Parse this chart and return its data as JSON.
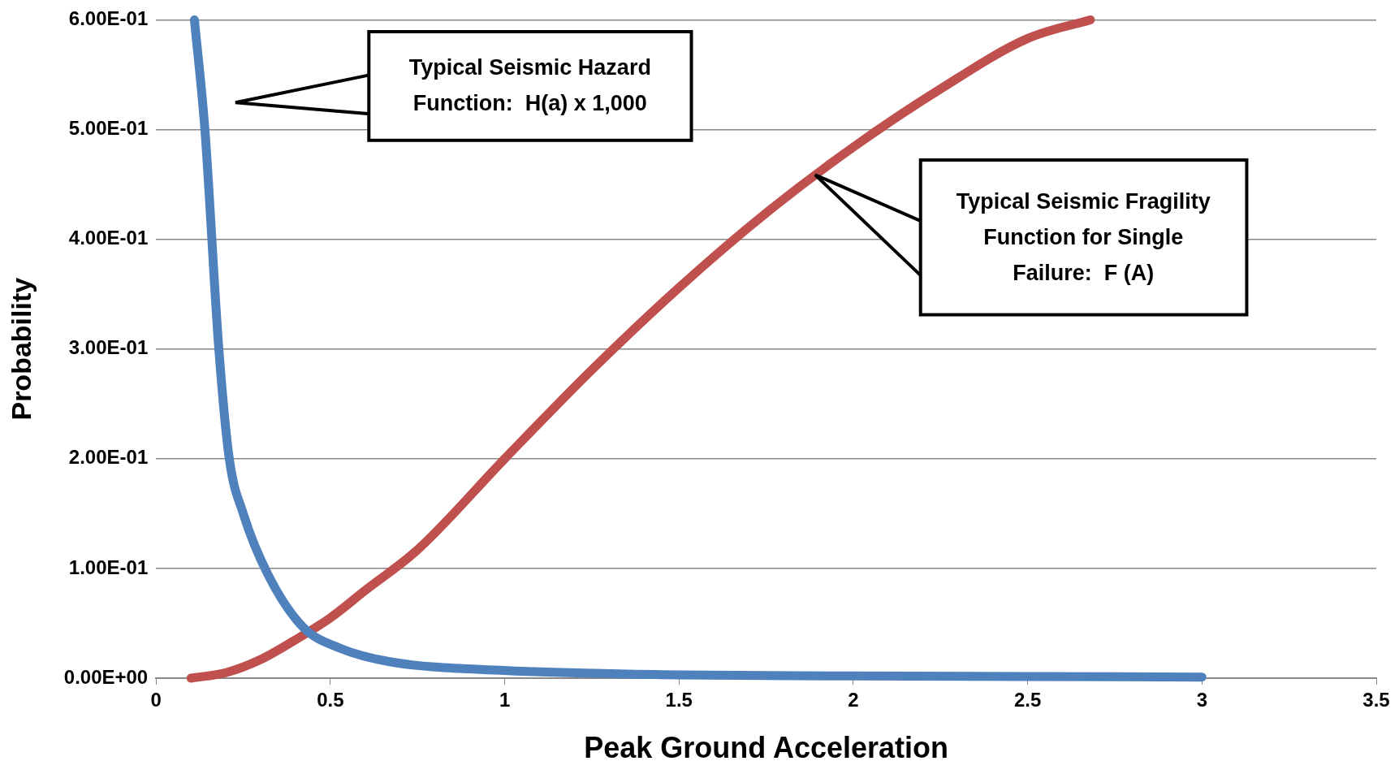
{
  "chart_data": {
    "type": "line",
    "xlabel": "Peak Ground Acceleration",
    "ylabel": "Probability",
    "xlim": [
      0,
      3.5
    ],
    "xticks": [
      0,
      0.5,
      1,
      1.5,
      2,
      2.5,
      3,
      3.5
    ],
    "ylim": [
      0,
      0.6
    ],
    "yticks": [
      {
        "value": 0,
        "label": "0.00E+00"
      },
      {
        "value": 0.1,
        "label": "1.00E-01"
      },
      {
        "value": 0.2,
        "label": "2.00E-01"
      },
      {
        "value": 0.3,
        "label": "3.00E-01"
      },
      {
        "value": 0.4,
        "label": "4.00E-01"
      },
      {
        "value": 0.5,
        "label": "5.00E-01"
      },
      {
        "value": 0.6,
        "label": "6.00E-01"
      }
    ],
    "grid": "y",
    "legend": false,
    "marker": "none",
    "line_style": "solid",
    "series": [
      {
        "color": "#4f81bd",
        "x": [
          0.11,
          0.14,
          0.18,
          0.21,
          0.25,
          0.32,
          0.42,
          0.53,
          0.67,
          1.0,
          1.5,
          2.0,
          2.5,
          3.0
        ],
        "values": [
          0.6,
          0.5,
          0.3,
          0.2,
          0.15,
          0.095,
          0.047,
          0.027,
          0.015,
          0.007,
          0.003,
          0.002,
          0.0015,
          0.001
        ]
      },
      {
        "color": "#c0504d",
        "x": [
          0.1,
          0.2,
          0.3,
          0.4,
          0.5,
          0.6,
          0.75,
          1.0,
          1.25,
          1.5,
          1.75,
          2.0,
          2.25,
          2.5,
          2.68
        ],
        "values": [
          0,
          0.005,
          0.017,
          0.035,
          0.055,
          0.08,
          0.117,
          0.2,
          0.281,
          0.356,
          0.424,
          0.484,
          0.537,
          0.583,
          0.6
        ]
      }
    ],
    "annotations": [
      "Typical Seismic Hazard Function:  H(a) x 1,000",
      "Typical Seismic Fragility Function for Single Failure:  F (A)"
    ]
  }
}
